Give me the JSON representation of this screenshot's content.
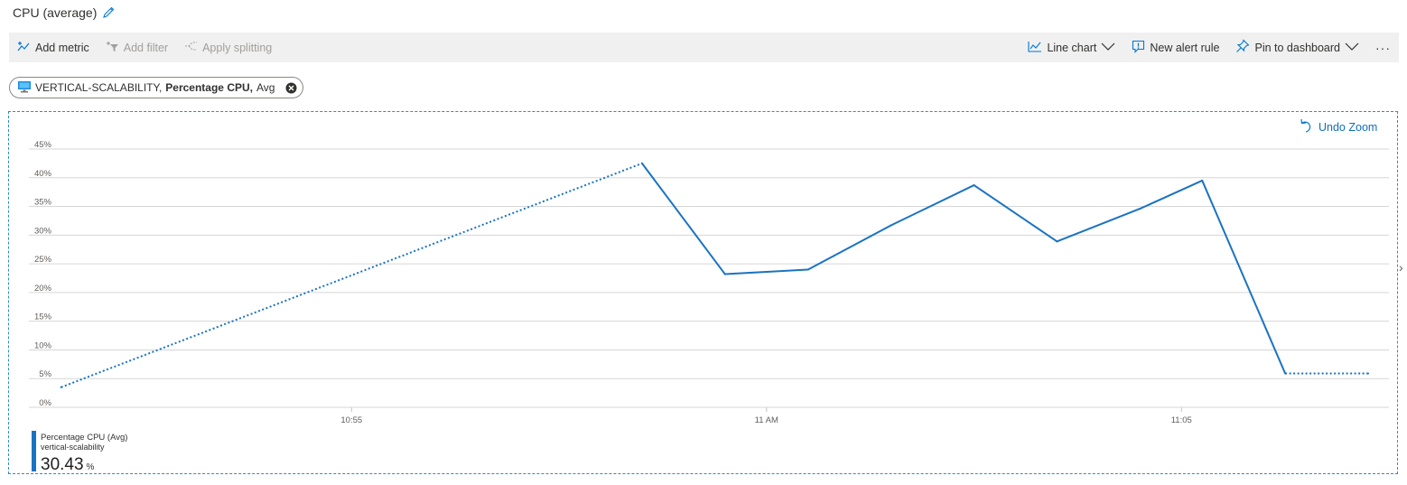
{
  "header": {
    "title": "CPU (average)",
    "edit_icon": "pencil-icon"
  },
  "toolbar": {
    "add_metric": "Add metric",
    "add_filter": "Add filter",
    "apply_splitting": "Apply splitting",
    "chart_type": "Line chart",
    "new_alert_rule": "New alert rule",
    "pin_to_dashboard": "Pin to dashboard",
    "more": "···"
  },
  "metric_chip": {
    "resource": "VERTICAL-SCALABILITY,",
    "metric": "Percentage CPU,",
    "aggregation": "Avg"
  },
  "undo_zoom": "Undo Zoom",
  "legend": {
    "series": "Percentage CPU (Avg)",
    "resource": "vertical-scalability",
    "value": "30.43",
    "unit": "%"
  },
  "colors": {
    "accent": "#0078d4",
    "line": "#1a73c2",
    "toolbar_bg": "#f0f0f0",
    "grid": "#d6d6d6"
  },
  "chart_data": {
    "type": "line",
    "title": "",
    "xlabel": "",
    "ylabel": "",
    "ylim": [
      0,
      45
    ],
    "yticks": [
      "0%",
      "5%",
      "10%",
      "15%",
      "20%",
      "25%",
      "30%",
      "35%",
      "40%",
      "45%"
    ],
    "xlim": [
      "10:51:25",
      "11:07:30"
    ],
    "xticks": [
      {
        "time": "10:55",
        "label": "10:55"
      },
      {
        "time": "11:00",
        "label": "11 AM"
      },
      {
        "time": "11:05",
        "label": "11:05"
      }
    ],
    "grid": true,
    "series": [
      {
        "name": "Percentage CPU (Avg)",
        "points": [
          {
            "x": "10:51:30",
            "y": 3.5,
            "gap_before": false
          },
          {
            "x": "10:58:30",
            "y": 42.5,
            "gap_before": true
          },
          {
            "x": "10:59:30",
            "y": 23.2,
            "gap_before": false
          },
          {
            "x": "11:00:30",
            "y": 24.0,
            "gap_before": false
          },
          {
            "x": "11:01:30",
            "y": 31.7,
            "gap_before": false
          },
          {
            "x": "11:02:30",
            "y": 38.7,
            "gap_before": false
          },
          {
            "x": "11:03:30",
            "y": 28.9,
            "gap_before": false
          },
          {
            "x": "11:04:30",
            "y": 34.6,
            "gap_before": false
          },
          {
            "x": "11:05:15",
            "y": 39.5,
            "gap_before": false
          },
          {
            "x": "11:06:15",
            "y": 5.9,
            "gap_before": false
          },
          {
            "x": "11:07:15",
            "y": 5.9,
            "gap_before": true
          }
        ]
      }
    ]
  }
}
